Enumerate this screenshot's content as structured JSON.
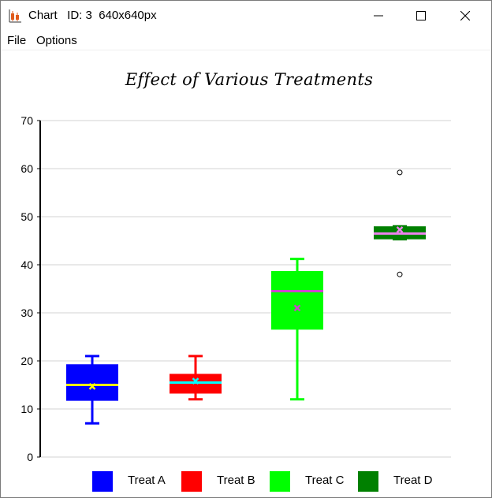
{
  "window": {
    "title": "Chart   ID: 3  640x640px"
  },
  "menu": {
    "file": "File",
    "options": "Options"
  },
  "chart_data": {
    "type": "boxplot",
    "title": "Effect of Various Treatments",
    "xlabel": "",
    "ylabel": "",
    "ylim": [
      0,
      70
    ],
    "y_ticks": [
      0,
      10,
      20,
      30,
      40,
      50,
      60,
      70
    ],
    "grid": true,
    "legend_position": "bottom",
    "series": [
      {
        "name": "Treat A",
        "color": "#0000ff",
        "median_color": "#ffff00",
        "mean_color": "#ffff00",
        "whisker_low": 7,
        "q1": 11.7,
        "median": 15,
        "q3": 19.3,
        "whisker_high": 21,
        "mean": 14.7,
        "outliers": []
      },
      {
        "name": "Treat B",
        "color": "#ff0000",
        "median_color": "#00ffff",
        "mean_color": "#00ffff",
        "whisker_low": 12,
        "q1": 13.2,
        "median": 15.5,
        "q3": 17.3,
        "whisker_high": 21,
        "mean": 15.8,
        "outliers": []
      },
      {
        "name": "Treat C",
        "color": "#00ff00",
        "median_color": "#cc44cc",
        "mean_color": "#cc44cc",
        "whisker_low": 12,
        "q1": 26.5,
        "median": 34.5,
        "q3": 38.7,
        "whisker_high": 41.2,
        "mean": 31,
        "outliers": []
      },
      {
        "name": "Treat D",
        "color": "#008000",
        "median_color": "#ee82ee",
        "mean_color": "#ee82ee",
        "whisker_low": 45.3,
        "q1": 45.3,
        "median": 46.5,
        "q3": 48,
        "whisker_high": 48,
        "mean": 47.3,
        "outliers": [
          59.2,
          38
        ]
      }
    ]
  }
}
